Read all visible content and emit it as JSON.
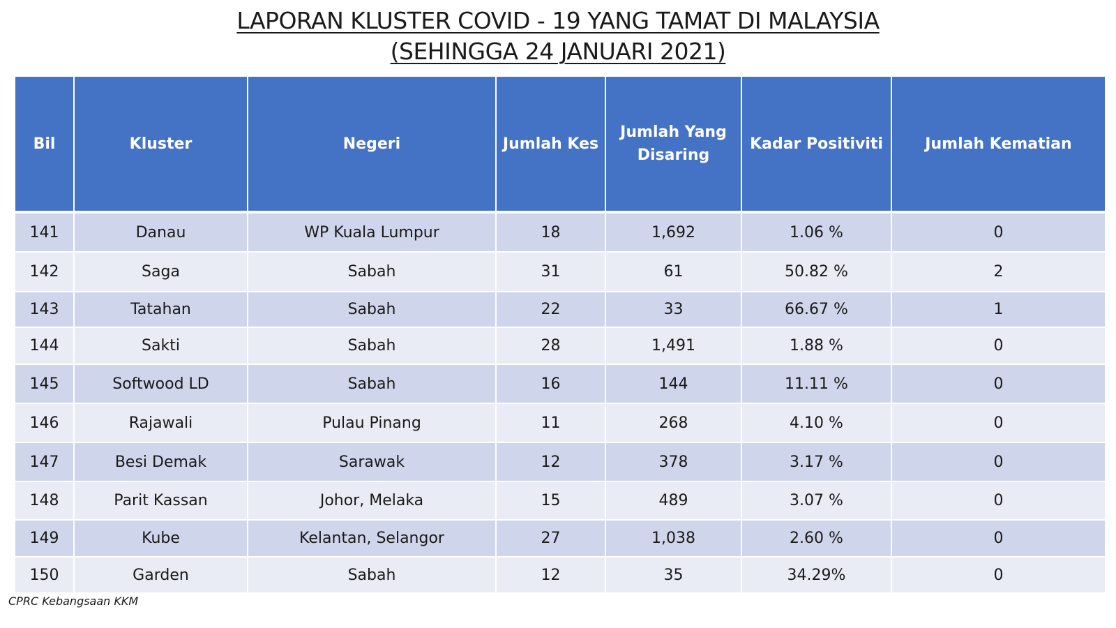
{
  "title": {
    "line1": "LAPORAN KLUSTER COVID - 19 YANG TAMAT DI MALAYSIA",
    "line2": "(SEHINGGA 24 JANUARI 2021)"
  },
  "table": {
    "headers": {
      "bil": "Bil",
      "kluster": "Kluster",
      "negeri": "Negeri",
      "jumlah_kes": "Jumlah Kes",
      "jumlah_disaring": "Jumlah Yang Disaring",
      "kadar_positiviti": "Kadar Positiviti",
      "jumlah_kematian": "Jumlah Kematian"
    },
    "rows": [
      {
        "bil": "141",
        "kluster": "Danau",
        "negeri": "WP Kuala Lumpur",
        "kes": "18",
        "disaring": "1,692",
        "positiviti": "1.06 %",
        "kematian": "0"
      },
      {
        "bil": "142",
        "kluster": "Saga",
        "negeri": "Sabah",
        "kes": "31",
        "disaring": "61",
        "positiviti": "50.82 %",
        "kematian": "2"
      },
      {
        "bil": "143",
        "kluster": "Tatahan",
        "negeri": "Sabah",
        "kes": "22",
        "disaring": "33",
        "positiviti": "66.67 %",
        "kematian": "1"
      },
      {
        "bil": "144",
        "kluster": "Sakti",
        "negeri": "Sabah",
        "kes": "28",
        "disaring": "1,491",
        "positiviti": "1.88 %",
        "kematian": "0"
      },
      {
        "bil": "145",
        "kluster": "Softwood LD",
        "negeri": "Sabah",
        "kes": "16",
        "disaring": "144",
        "positiviti": "11.11 %",
        "kematian": "0"
      },
      {
        "bil": "146",
        "kluster": "Rajawali",
        "negeri": "Pulau Pinang",
        "kes": "11",
        "disaring": "268",
        "positiviti": "4.10 %",
        "kematian": "0"
      },
      {
        "bil": "147",
        "kluster": "Besi Demak",
        "negeri": "Sarawak",
        "kes": "12",
        "disaring": "378",
        "positiviti": "3.17 %",
        "kematian": "0"
      },
      {
        "bil": "148",
        "kluster": "Parit Kassan",
        "negeri": "Johor, Melaka",
        "kes": "15",
        "disaring": "489",
        "positiviti": "3.07 %",
        "kematian": "0"
      },
      {
        "bil": "149",
        "kluster": "Kube",
        "negeri": "Kelantan, Selangor",
        "kes": "27",
        "disaring": "1,038",
        "positiviti": "2.60 %",
        "kematian": "0"
      },
      {
        "bil": "150",
        "kluster": "Garden",
        "negeri": "Sabah",
        "kes": "12",
        "disaring": "35",
        "positiviti": "34.29%",
        "kematian": "0"
      }
    ]
  },
  "source": "CPRC Kebangsaan KKM",
  "colors": {
    "header_bg": "#4472c4",
    "row_dark": "#cfd5ea",
    "row_light": "#e9ebf5"
  }
}
